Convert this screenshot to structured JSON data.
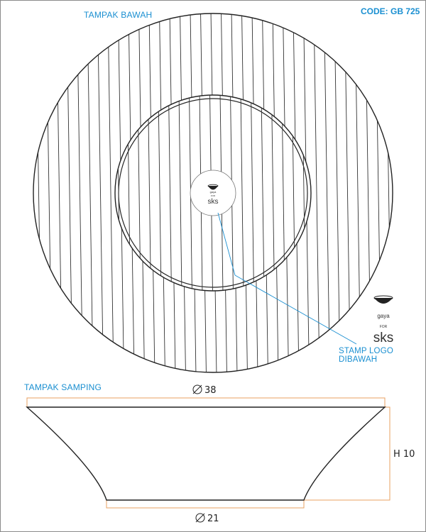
{
  "header": {
    "code": "CODE: GB 725"
  },
  "bottom_view": {
    "title": "TAMPAK BAWAH"
  },
  "stamp": {
    "callout": "STAMP LOGO DIBAWAH",
    "logo_top": "gaya",
    "logo_mid": "FOR",
    "logo_brand": "sks"
  },
  "side_view": {
    "title": "TAMPAK SAMPING",
    "top_diameter": "38",
    "bottom_diameter": "21",
    "height": "H 10"
  },
  "colors": {
    "accent": "#1a8fd1",
    "dimension_line": "#e8a060",
    "outline": "#222222"
  }
}
